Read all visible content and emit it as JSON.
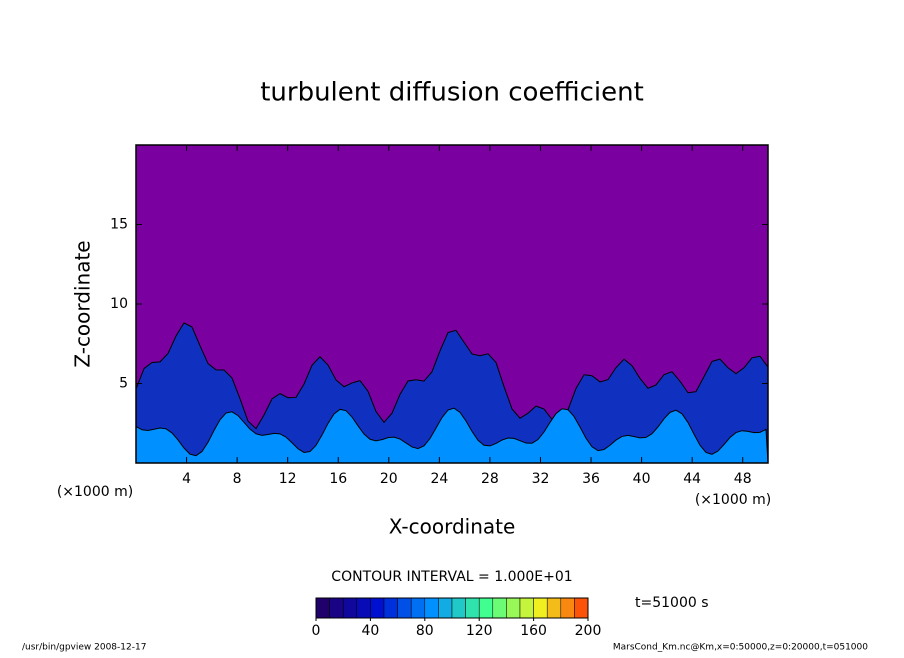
{
  "chart_data": {
    "type": "contour",
    "title": "turbulent diffusion coefficient",
    "xlabel": "X-coordinate",
    "ylabel": "Z-coordinate",
    "x_unit_label": "(×1000 m)",
    "xlim": [
      0,
      50
    ],
    "xticks": [
      4,
      8,
      12,
      16,
      20,
      24,
      28,
      32,
      36,
      40,
      44,
      48
    ],
    "ylim": [
      0,
      20
    ],
    "yticks": [
      5,
      10,
      15
    ],
    "background_color": "#7a00a0",
    "contour_interval_label": "CONTOUR INTERVAL = 1.000E+01",
    "contour_interval": 10,
    "clim": [
      0,
      200
    ],
    "cticks": [
      0,
      40,
      80,
      120,
      160,
      200
    ],
    "colormap": [
      "#20006a",
      "#0010d0",
      "#0090ff",
      "#40ff90",
      "#f0f020",
      "#ff2000"
    ],
    "time_label": "t=51000 s",
    "footer_left": "/usr/bin/gpview  2008-12-17",
    "footer_right": "MarsCond_Km.nc@Km,x=0:50000,z=0:20000,t=051000"
  }
}
